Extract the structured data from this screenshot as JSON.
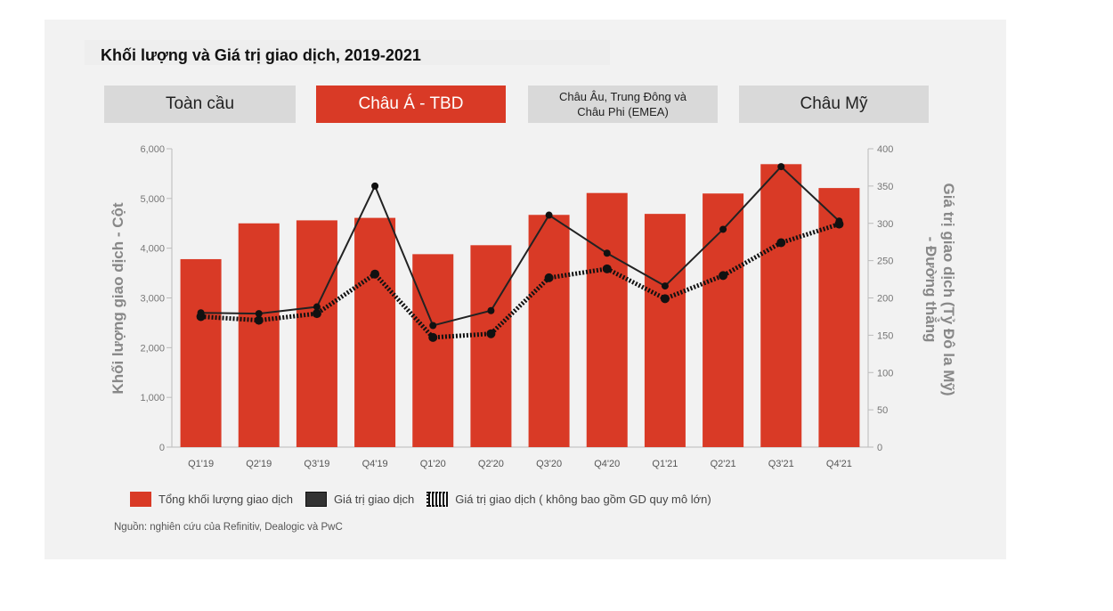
{
  "title": "Khối lượng và Giá trị giao dịch, 2019-2021",
  "tabs": [
    {
      "label": "Toàn cầu",
      "active": false
    },
    {
      "label": "Châu Á - TBD",
      "active": true
    },
    {
      "label": "Châu Âu, Trung Đông và Châu Phi (EMEA)",
      "active": false
    },
    {
      "label": "Châu Mỹ",
      "active": false
    }
  ],
  "colors": {
    "bar": "#d93a26",
    "line": "#222222",
    "axis": "#777777"
  },
  "chart_data": {
    "type": "bar",
    "categories": [
      "Q1'19",
      "Q2'19",
      "Q3'19",
      "Q4'19",
      "Q1'20",
      "Q2'20",
      "Q3'20",
      "Q4'20",
      "Q1'21",
      "Q2'21",
      "Q3'21",
      "Q4'21"
    ],
    "ylabel": "Khối lượng giao dịch - Cột",
    "y2label": "Giá trị giao dịch (Tỷ Đô la Mỹ) - Đường thẳng",
    "ylim": [
      0,
      6000
    ],
    "y2lim": [
      0,
      400
    ],
    "yticks": [
      "0",
      "1,000",
      "2,000",
      "3,000",
      "4,000",
      "5,000",
      "6,000"
    ],
    "y2ticks": [
      "0",
      "50",
      "100",
      "150",
      "200",
      "250",
      "300",
      "350",
      "400"
    ],
    "series": [
      {
        "name": "Tổng khối lượng giao dịch",
        "kind": "bar",
        "axis": "left",
        "values": [
          3780,
          4500,
          4560,
          4610,
          3880,
          4060,
          4670,
          5110,
          4690,
          5100,
          5690,
          5210
        ]
      },
      {
        "name": "Giá trị giao dịch",
        "kind": "line",
        "axis": "right",
        "values": [
          180,
          179,
          188,
          350,
          163,
          183,
          311,
          260,
          216,
          292,
          376,
          303
        ]
      },
      {
        "name": "Giá trị giao dịch ( không bao gồm GD quy mô lớn)",
        "kind": "dotted-line",
        "axis": "right",
        "values": [
          175,
          170,
          179,
          232,
          147,
          152,
          227,
          239,
          199,
          230,
          274,
          299
        ]
      }
    ]
  },
  "source": "Nguồn: nghiên cứu của Refinitiv, Dealogic và PwC"
}
